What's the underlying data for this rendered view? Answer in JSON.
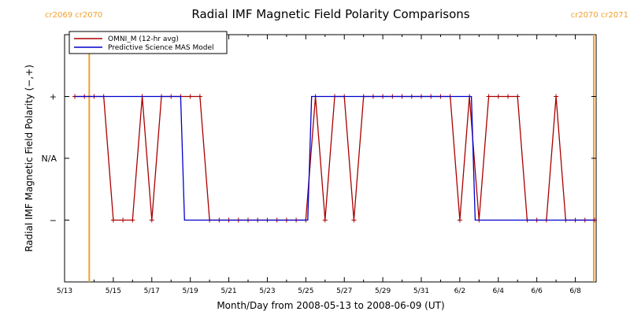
{
  "chart_data": {
    "type": "line",
    "title": "Radial IMF Magnetic Field Polarity Comparisons",
    "xlabel": "Month/Day from 2008-05-13 to 2008-06-09 (UT)",
    "ylabel": "Radial IMF Magnetic Field Polarity (−,+)",
    "xlim": [
      0,
      27
    ],
    "ylim": [
      -2,
      2
    ],
    "x_tick_values": [
      0,
      2,
      4,
      6,
      8,
      10,
      12,
      14,
      16,
      18,
      20,
      22,
      24,
      26
    ],
    "x_tick_labels": [
      "5/13",
      "5/15",
      "5/17",
      "5/19",
      "5/21",
      "5/23",
      "5/25",
      "5/27",
      "5/29",
      "5/31",
      "6/2",
      "6/4",
      "6/6",
      "6/8"
    ],
    "y_tick_values": [
      1,
      0,
      -1
    ],
    "y_tick_labels": [
      "+",
      "N/A",
      "−"
    ],
    "legend_position": "top-left",
    "carrington_markers": [
      {
        "x": 0.75,
        "left_label": "cr2069",
        "right_label": "cr2070",
        "label_side": "left"
      },
      {
        "x": 26.96,
        "left_label": "cr2070",
        "right_label": "cr2071",
        "label_side": "right"
      }
    ],
    "marker_color": "#f0a030",
    "series": [
      {
        "name": "OMNI_M (12-hr avg)",
        "color": "#aa0000",
        "markers": true,
        "x": [
          0.0,
          0.5,
          1.0,
          1.5,
          2.0,
          2.5,
          3.0,
          3.5,
          4.0,
          4.5,
          5.0,
          5.5,
          6.0,
          6.5,
          7.0,
          7.5,
          8.0,
          8.5,
          9.0,
          9.5,
          10.0,
          10.5,
          11.0,
          11.5,
          12.0,
          12.5,
          13.0,
          13.5,
          14.0,
          14.5,
          15.0,
          15.5,
          16.0,
          16.5,
          17.0,
          17.5,
          18.0,
          18.5,
          19.0,
          19.5,
          20.0,
          20.5,
          21.0,
          21.5,
          22.0,
          22.5,
          23.0,
          23.5,
          24.0,
          24.5,
          25.0,
          25.5,
          26.0,
          26.5,
          27.0
        ],
        "y": [
          1,
          1,
          1,
          1,
          -1,
          -1,
          -1,
          1,
          -1,
          1,
          1,
          1,
          1,
          1,
          -1,
          -1,
          -1,
          -1,
          -1,
          -1,
          -1,
          -1,
          -1,
          -1,
          -1,
          1,
          -1,
          1,
          1,
          -1,
          1,
          1,
          1,
          1,
          1,
          1,
          1,
          1,
          1,
          1,
          -1,
          1,
          -1,
          1,
          1,
          1,
          1,
          -1,
          -1,
          -1,
          1,
          -1,
          -1,
          -1,
          -1
        ]
      },
      {
        "name": "Predictive Science MAS Model",
        "color": "#0000cc",
        "markers": false,
        "x": [
          0.0,
          5.5,
          5.7,
          12.1,
          12.3,
          20.6,
          20.8,
          27.0
        ],
        "y": [
          1,
          1,
          -1,
          -1,
          1,
          1,
          -1,
          -1
        ]
      }
    ]
  }
}
